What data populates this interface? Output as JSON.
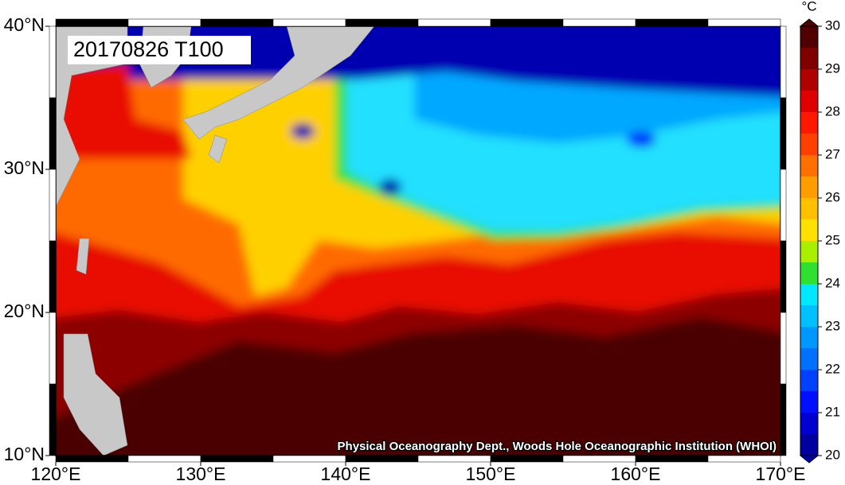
{
  "map": {
    "title": "20170826 T100",
    "credit": "Physical Oceanography Dept., Woods Hole Oceanographic Institution (WHOI)",
    "lon_ticks": [
      {
        "value": 120,
        "label": "120°E"
      },
      {
        "value": 130,
        "label": "130°E"
      },
      {
        "value": 140,
        "label": "140°E"
      },
      {
        "value": 150,
        "label": "150°E"
      },
      {
        "value": 160,
        "label": "160°E"
      },
      {
        "value": 170,
        "label": "170°E"
      }
    ],
    "lat_ticks": [
      {
        "value": 10,
        "label": "10°N"
      },
      {
        "value": 20,
        "label": "20°N"
      },
      {
        "value": 30,
        "label": "30°N"
      },
      {
        "value": 40,
        "label": "40°N"
      }
    ],
    "colorbar": {
      "unit": "°C",
      "range": [
        20,
        30
      ],
      "ticks": [
        20,
        21,
        22,
        23,
        24,
        25,
        26,
        27,
        28,
        29,
        30
      ],
      "colors": [
        "#0000a0",
        "#0000d0",
        "#0010ff",
        "#0040ff",
        "#0070ff",
        "#0098ff",
        "#00c0ff",
        "#00e8ff",
        "#30e030",
        "#a8f000",
        "#ffe000",
        "#ffc000",
        "#ff9c00",
        "#ff7000",
        "#ff4000",
        "#ff1800",
        "#e00000",
        "#b00000",
        "#800000",
        "#500000"
      ]
    }
  }
}
